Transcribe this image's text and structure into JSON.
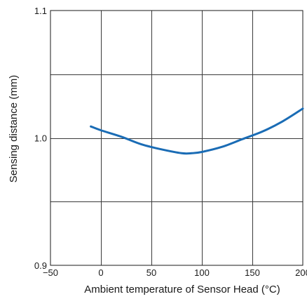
{
  "chart_data": {
    "type": "line",
    "title": "",
    "xlabel": "Ambient temperature of Sensor Head (°C)",
    "ylabel": "Sensing distance (mm)",
    "xlim": [
      -50,
      200
    ],
    "ylim": [
      0.9,
      1.1
    ],
    "x_ticks": [
      -50,
      0,
      50,
      100,
      150,
      200
    ],
    "x_tick_labels": [
      "−50",
      "0",
      "50",
      "100",
      "150",
      "200"
    ],
    "y_ticks": [
      0.9,
      1.0,
      1.1
    ],
    "y_tick_labels": [
      "0.9",
      "1.0",
      "1.1"
    ],
    "grid": true,
    "series": [
      {
        "color": "#1a6cb5",
        "x": [
          -10,
          0,
          20,
          40,
          60,
          80,
          90,
          100,
          120,
          140,
          160,
          180,
          200
        ],
        "y": [
          1.009,
          1.006,
          1.001,
          0.995,
          0.991,
          0.988,
          0.988,
          0.989,
          0.993,
          0.999,
          1.005,
          1.013,
          1.023
        ]
      }
    ]
  }
}
